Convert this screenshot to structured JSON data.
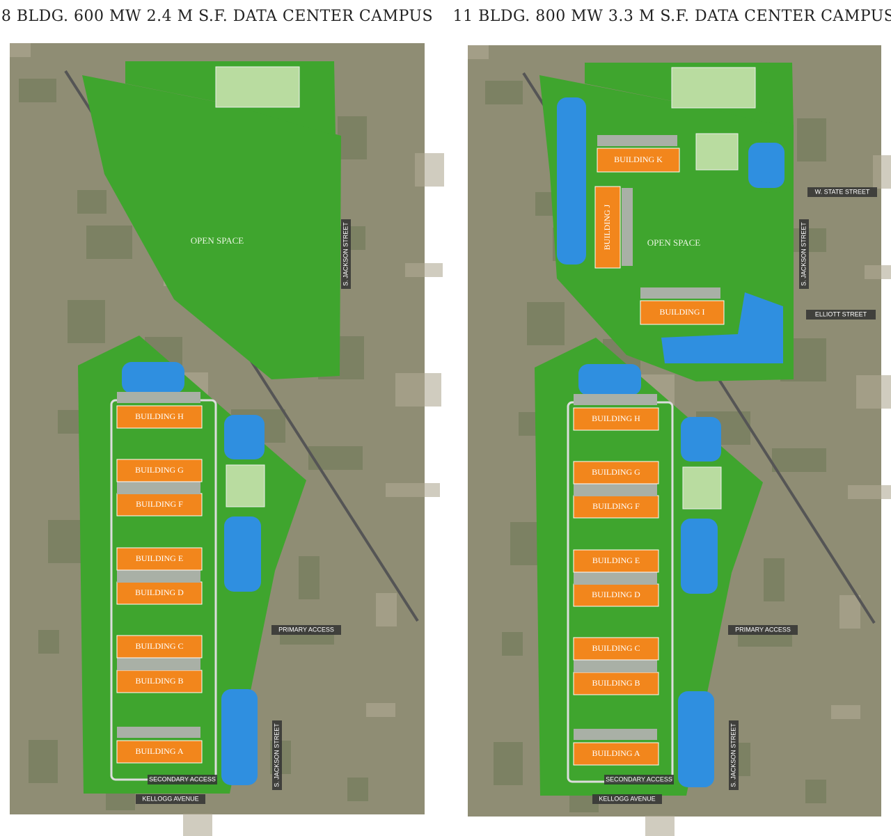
{
  "panels": [
    {
      "title": "8 BLDG. 600 MW 2.4 M S.F. DATA CENTER CAMPUS",
      "open_space": "OPEN SPACE",
      "buildings": [
        "BUILDING A",
        "BUILDING B",
        "BUILDING C",
        "BUILDING D",
        "BUILDING E",
        "BUILDING F",
        "BUILDING G",
        "BUILDING H"
      ],
      "streets": [
        "S. JACKSON STREET",
        "S. JACKSON STREET",
        "KELLOGG AVENUE",
        "PRIMARY ACCESS",
        "SECONDARY ACCESS"
      ]
    },
    {
      "title": "11 BLDG. 800 MW 3.3 M S.F. DATA CENTER CAMPUS",
      "open_space": "OPEN SPACE",
      "buildings": [
        "BUILDING A",
        "BUILDING B",
        "BUILDING C",
        "BUILDING D",
        "BUILDING E",
        "BUILDING F",
        "BUILDING G",
        "BUILDING H",
        "BUILDING I",
        "BUILDING J",
        "BUILDING K"
      ],
      "streets": [
        "S. JACKSON STREET",
        "S. JACKSON STREET",
        "KELLOGG AVENUE",
        "PRIMARY ACCESS",
        "SECONDARY ACCESS",
        "W. STATE STREET",
        "ELLIOTT STREET"
      ]
    }
  ]
}
